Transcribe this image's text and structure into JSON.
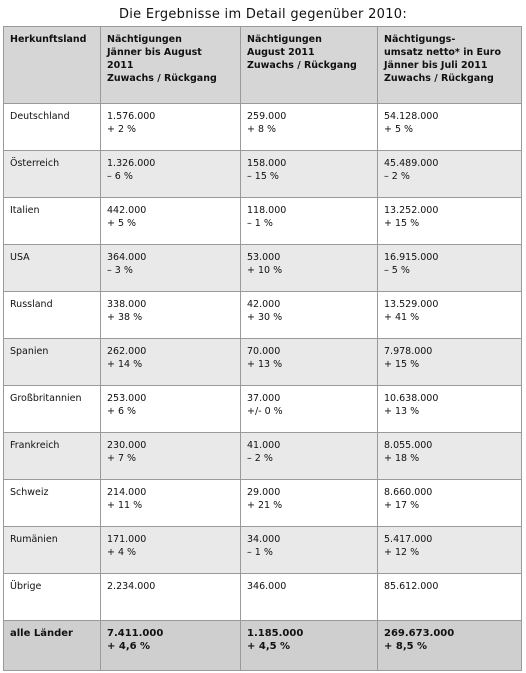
{
  "title": "Die Ergebnisse im Detail gegenüber 2010:",
  "headers": [
    [
      "Herkunftsland"
    ],
    [
      "Nächtigungen",
      "Jänner bis August",
      "2011",
      "Zuwachs / Rückgang"
    ],
    [
      "Nächtigungen",
      "August 2011",
      "Zuwachs / Rückgang"
    ],
    [
      "Nächtigungs-",
      "umsatz netto* in Euro",
      "Jänner bis Juli 2011",
      "Zuwachs / Rückgang"
    ]
  ],
  "rows": [
    {
      "country": "Deutschland",
      "jan_aug": [
        "1.576.000",
        "+ 2 %"
      ],
      "aug": [
        "259.000",
        "+ 8 %"
      ],
      "umsatz": [
        "54.128.000",
        "+ 5 %"
      ]
    },
    {
      "country": "Österreich",
      "jan_aug": [
        "1.326.000",
        "– 6 %"
      ],
      "aug": [
        "158.000",
        "– 15 %"
      ],
      "umsatz": [
        "45.489.000",
        "– 2 %"
      ]
    },
    {
      "country": "Italien",
      "jan_aug": [
        "442.000",
        "+ 5 %"
      ],
      "aug": [
        "118.000",
        "– 1 %"
      ],
      "umsatz": [
        "13.252.000",
        "+ 15 %"
      ]
    },
    {
      "country": "USA",
      "jan_aug": [
        "364.000",
        "– 3 %"
      ],
      "aug": [
        "53.000",
        "+ 10 %"
      ],
      "umsatz": [
        "16.915.000",
        "– 5 %"
      ]
    },
    {
      "country": "Russland",
      "jan_aug": [
        "338.000",
        "+ 38 %"
      ],
      "aug": [
        "42.000",
        "+ 30 %"
      ],
      "umsatz": [
        "13.529.000",
        "+ 41 %"
      ]
    },
    {
      "country": "Spanien",
      "jan_aug": [
        "262.000",
        "+ 14 %"
      ],
      "aug": [
        "70.000",
        "+ 13 %"
      ],
      "umsatz": [
        "7.978.000",
        "+ 15 %"
      ]
    },
    {
      "country": "Großbritannien",
      "jan_aug": [
        "253.000",
        "+ 6 %"
      ],
      "aug": [
        "37.000",
        "+/- 0 %"
      ],
      "umsatz": [
        "10.638.000",
        "+ 13 %"
      ]
    },
    {
      "country": "Frankreich",
      "jan_aug": [
        "230.000",
        "+ 7 %"
      ],
      "aug": [
        "41.000",
        "– 2 %"
      ],
      "umsatz": [
        "8.055.000",
        "+ 18 %"
      ]
    },
    {
      "country": "Schweiz",
      "jan_aug": [
        "214.000",
        "+ 11 %"
      ],
      "aug": [
        "29.000",
        "+ 21 %"
      ],
      "umsatz": [
        "8.660.000",
        "+ 17 %"
      ]
    },
    {
      "country": "Rumänien",
      "jan_aug": [
        "171.000",
        "+ 4 %"
      ],
      "aug": [
        "34.000",
        "– 1 %"
      ],
      "umsatz": [
        "5.417.000",
        "+ 12 %"
      ]
    },
    {
      "country": "Übrige",
      "jan_aug": [
        "2.234.000"
      ],
      "aug": [
        "346.000"
      ],
      "umsatz": [
        "85.612.000"
      ]
    }
  ],
  "total": {
    "country": "alle Länder",
    "jan_aug": [
      "7.411.000",
      "+ 4,6 %"
    ],
    "aug": [
      "1.185.000",
      "+ 4,5 %"
    ],
    "umsatz": [
      "269.673.000",
      "+ 8,5 %"
    ]
  }
}
